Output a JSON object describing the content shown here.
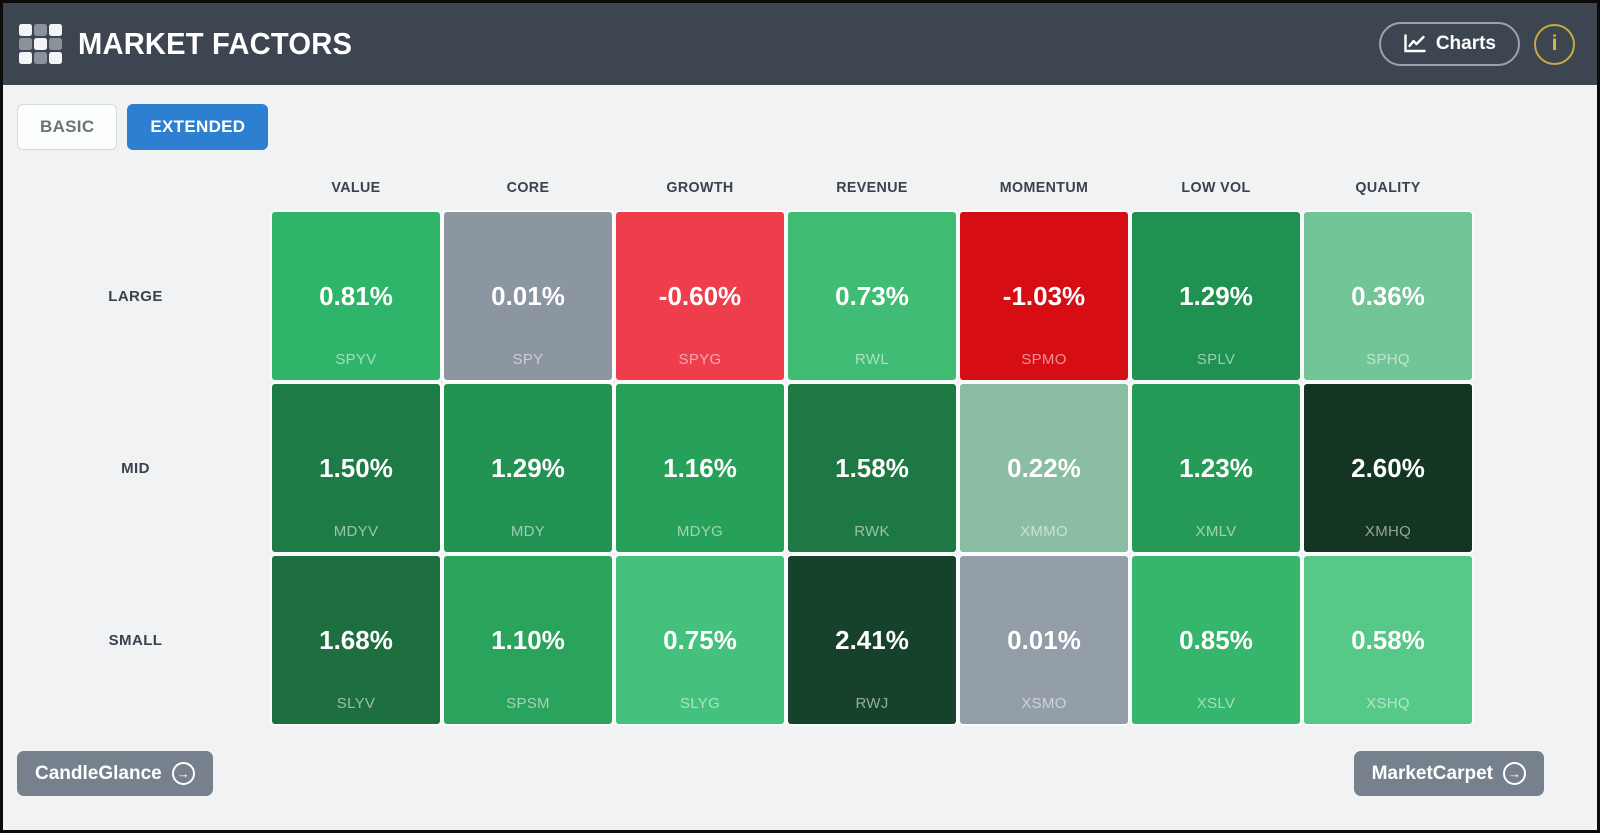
{
  "header": {
    "title": "MARKET FACTORS",
    "charts_button_label": "Charts",
    "info_button_label": "i"
  },
  "tabs": [
    {
      "label": "BASIC",
      "active": false
    },
    {
      "label": "EXTENDED",
      "active": true
    }
  ],
  "icons": {
    "arrow_right": "→"
  },
  "colors": {
    "header_bg": "#3d4550",
    "page_bg": "#f0f2f4",
    "active_tab_blue": "#2d7fd2",
    "footer_button_gray": "#76818d",
    "info_gold": "#d8b93f"
  },
  "heatmap": {
    "columns": [
      "VALUE",
      "CORE",
      "GROWTH",
      "REVENUE",
      "MOMENTUM",
      "LOW VOL",
      "QUALITY"
    ],
    "rows": [
      {
        "label": "LARGE",
        "cells": [
          {
            "value": "0.81%",
            "ticker": "SPYV",
            "bg": "#2fb569"
          },
          {
            "value": "0.01%",
            "ticker": "SPY",
            "bg": "#8b96a1"
          },
          {
            "value": "-0.60%",
            "ticker": "SPYG",
            "bg": "#ee3e4b"
          },
          {
            "value": "0.73%",
            "ticker": "RWL",
            "bg": "#40bc75"
          },
          {
            "value": "-1.03%",
            "ticker": "SPMO",
            "bg": "#d60d13"
          },
          {
            "value": "1.29%",
            "ticker": "SPLV",
            "bg": "#1f9150"
          },
          {
            "value": "0.36%",
            "ticker": "SPHQ",
            "bg": "#72c597"
          }
        ]
      },
      {
        "label": "MID",
        "cells": [
          {
            "value": "1.50%",
            "ticker": "MDYV",
            "bg": "#1d7c45"
          },
          {
            "value": "1.29%",
            "ticker": "MDY",
            "bg": "#229253"
          },
          {
            "value": "1.16%",
            "ticker": "MDYG",
            "bg": "#27a059"
          },
          {
            "value": "1.58%",
            "ticker": "RWK",
            "bg": "#1d7843"
          },
          {
            "value": "0.22%",
            "ticker": "XMMO",
            "bg": "#8abda2"
          },
          {
            "value": "1.23%",
            "ticker": "XMLV",
            "bg": "#269b57"
          },
          {
            "value": "2.60%",
            "ticker": "XMHQ",
            "bg": "#133522"
          }
        ]
      },
      {
        "label": "SMALL",
        "cells": [
          {
            "value": "1.68%",
            "ticker": "SLYV",
            "bg": "#1e6f40"
          },
          {
            "value": "1.10%",
            "ticker": "SPSM",
            "bg": "#2aa35d"
          },
          {
            "value": "0.75%",
            "ticker": "SLYG",
            "bg": "#44c27d"
          },
          {
            "value": "2.41%",
            "ticker": "RWJ",
            "bg": "#16422b"
          },
          {
            "value": "0.01%",
            "ticker": "XSMO",
            "bg": "#949ea9"
          },
          {
            "value": "0.85%",
            "ticker": "XSLV",
            "bg": "#36b56c"
          },
          {
            "value": "0.58%",
            "ticker": "XSHQ",
            "bg": "#56c887"
          }
        ]
      }
    ]
  },
  "footer": {
    "candleglance_label": "CandleGlance",
    "marketcarpet_label": "MarketCarpet"
  }
}
